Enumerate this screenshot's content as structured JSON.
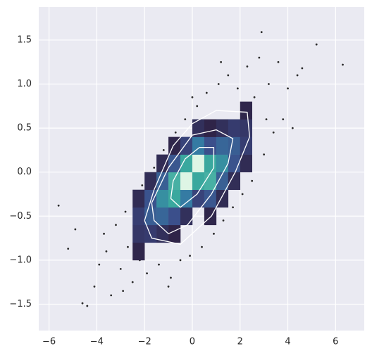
{
  "chart_data": [
    {
      "type": "heatmap",
      "xlim": [
        -6.43,
        7.2
      ],
      "ylim": [
        -1.8,
        1.875
      ],
      "xticks": [
        {
          "value": -6,
          "label": "−6"
        },
        {
          "value": -4,
          "label": "−4"
        },
        {
          "value": -2,
          "label": "−2"
        },
        0,
        2,
        4,
        6
      ],
      "yticks": [
        {
          "value": -1.5,
          "label": "−1.5"
        },
        {
          "value": -1,
          "label": "−1.0"
        },
        {
          "value": -0.5,
          "label": "−0.5"
        },
        {
          "value": 0,
          "label": "0.0"
        },
        0.5,
        {
          "value": 1,
          "label": "1.0"
        },
        1.5
      ],
      "grid": true,
      "background": "#eaeaf2",
      "grid_color": "#ffffff",
      "colormap": [
        "#2d1e3e",
        "#3b4d8a",
        "#357ba3",
        "#3aaa9e",
        "#def5e5"
      ],
      "x_edges": [
        -2.5,
        -2,
        -1.5,
        -1,
        -0.5,
        0,
        0.5,
        1,
        1.5,
        2,
        2.5
      ],
      "y_edges": [
        -1,
        -0.8,
        -0.6,
        -0.4,
        -0.2,
        0,
        0.2,
        0.4,
        0.6,
        0.8
      ],
      "counts": [
        [
          4,
          null,
          null,
          null,
          null,
          null,
          null,
          null,
          null,
          null
        ],
        [
          13,
          15,
          9,
          3,
          null,
          null,
          null,
          null,
          null,
          null
        ],
        [
          16,
          33,
          37,
          25,
          9,
          null,
          4,
          null,
          null,
          null
        ],
        [
          7,
          27,
          58,
          71,
          48,
          19,
          29,
          7,
          null,
          null
        ],
        [
          null,
          8,
          34,
          74,
          96,
          71,
          74,
          34,
          8,
          null
        ],
        [
          null,
          null,
          7,
          29,
          71,
          96,
          71,
          58,
          27,
          7
        ],
        [
          null,
          null,
          null,
          4,
          19,
          48,
          25,
          37,
          33,
          16
        ],
        [
          null,
          null,
          null,
          null,
          null,
          9,
          3,
          9,
          15,
          13
        ],
        [
          null,
          null,
          null,
          null,
          null,
          null,
          null,
          null,
          null,
          4
        ]
      ]
    },
    {
      "type": "scatter",
      "color": "#2a2a2a",
      "x": [
        -5.6,
        -5.2,
        -4.9,
        -4.6,
        -4.4,
        -4.1,
        -3.9,
        -3.6,
        -3.4,
        -3.2,
        -3.0,
        -2.8,
        -2.7,
        -2.5,
        -2.4,
        -2.2,
        -2.1,
        -1.9,
        -1.6,
        -1.4,
        -1.2,
        -0.9,
        -0.7,
        -0.5,
        -0.3,
        -0.1,
        0.2,
        0.4,
        0.6,
        0.9,
        1.1,
        1.3,
        1.5,
        1.7,
        1.9,
        2.1,
        2.3,
        2.5,
        2.6,
        2.8,
        2.9,
        3.0,
        3.2,
        3.4,
        3.6,
        3.8,
        4.0,
        4.2,
        4.4,
        4.6,
        5.2,
        6.3,
        -3.7,
        -2.9,
        1.2,
        0.0,
        -1.0,
        2.2,
        3.1,
        -1.8
      ],
      "y": [
        -0.38,
        -0.87,
        -0.65,
        -1.49,
        -1.52,
        -1.3,
        -1.05,
        -0.9,
        -1.4,
        -0.6,
        -1.1,
        -0.45,
        -0.85,
        -1.25,
        -0.3,
        -1.0,
        -0.15,
        -1.15,
        0.05,
        -1.05,
        0.25,
        -1.2,
        0.45,
        -1.0,
        0.6,
        -0.95,
        0.75,
        -0.85,
        0.9,
        -0.7,
        1.0,
        -0.55,
        1.1,
        -0.4,
        0.95,
        -0.25,
        1.2,
        -0.1,
        0.85,
        1.3,
        1.59,
        0.2,
        1.0,
        0.45,
        1.25,
        0.6,
        0.95,
        0.5,
        1.1,
        1.18,
        1.45,
        1.22,
        -0.7,
        -1.35,
        1.25,
        0.85,
        -1.3,
        0.1,
        0.6,
        -0.05
      ]
    },
    {
      "type": "line",
      "color": "#ffffff",
      "lines": [
        {
          "x": [
            -2.0,
            -1.6,
            -0.8,
            0,
            1.0,
            2.3,
            2.4,
            1.8,
            0.8,
            -0.5,
            -1.7,
            -2.0
          ],
          "y": [
            -0.55,
            -0.2,
            0.3,
            0.55,
            0.7,
            0.68,
            0.4,
            0.0,
            -0.5,
            -0.82,
            -0.75,
            -0.55
          ]
        },
        {
          "x": [
            -1.7,
            -1.0,
            0,
            1.0,
            1.7,
            1.5,
            0.8,
            -0.2,
            -1.0,
            -1.6,
            -1.7
          ],
          "y": [
            -0.35,
            0.05,
            0.42,
            0.48,
            0.38,
            0.1,
            -0.25,
            -0.6,
            -0.7,
            -0.55,
            -0.35
          ]
        },
        {
          "x": [
            -0.8,
            -0.3,
            0.3,
            0.9,
            0.9,
            0.2,
            -0.5,
            -0.9,
            -0.8
          ],
          "y": [
            -0.1,
            0.15,
            0.28,
            0.28,
            0.05,
            -0.25,
            -0.4,
            -0.3,
            -0.1
          ]
        }
      ]
    }
  ]
}
